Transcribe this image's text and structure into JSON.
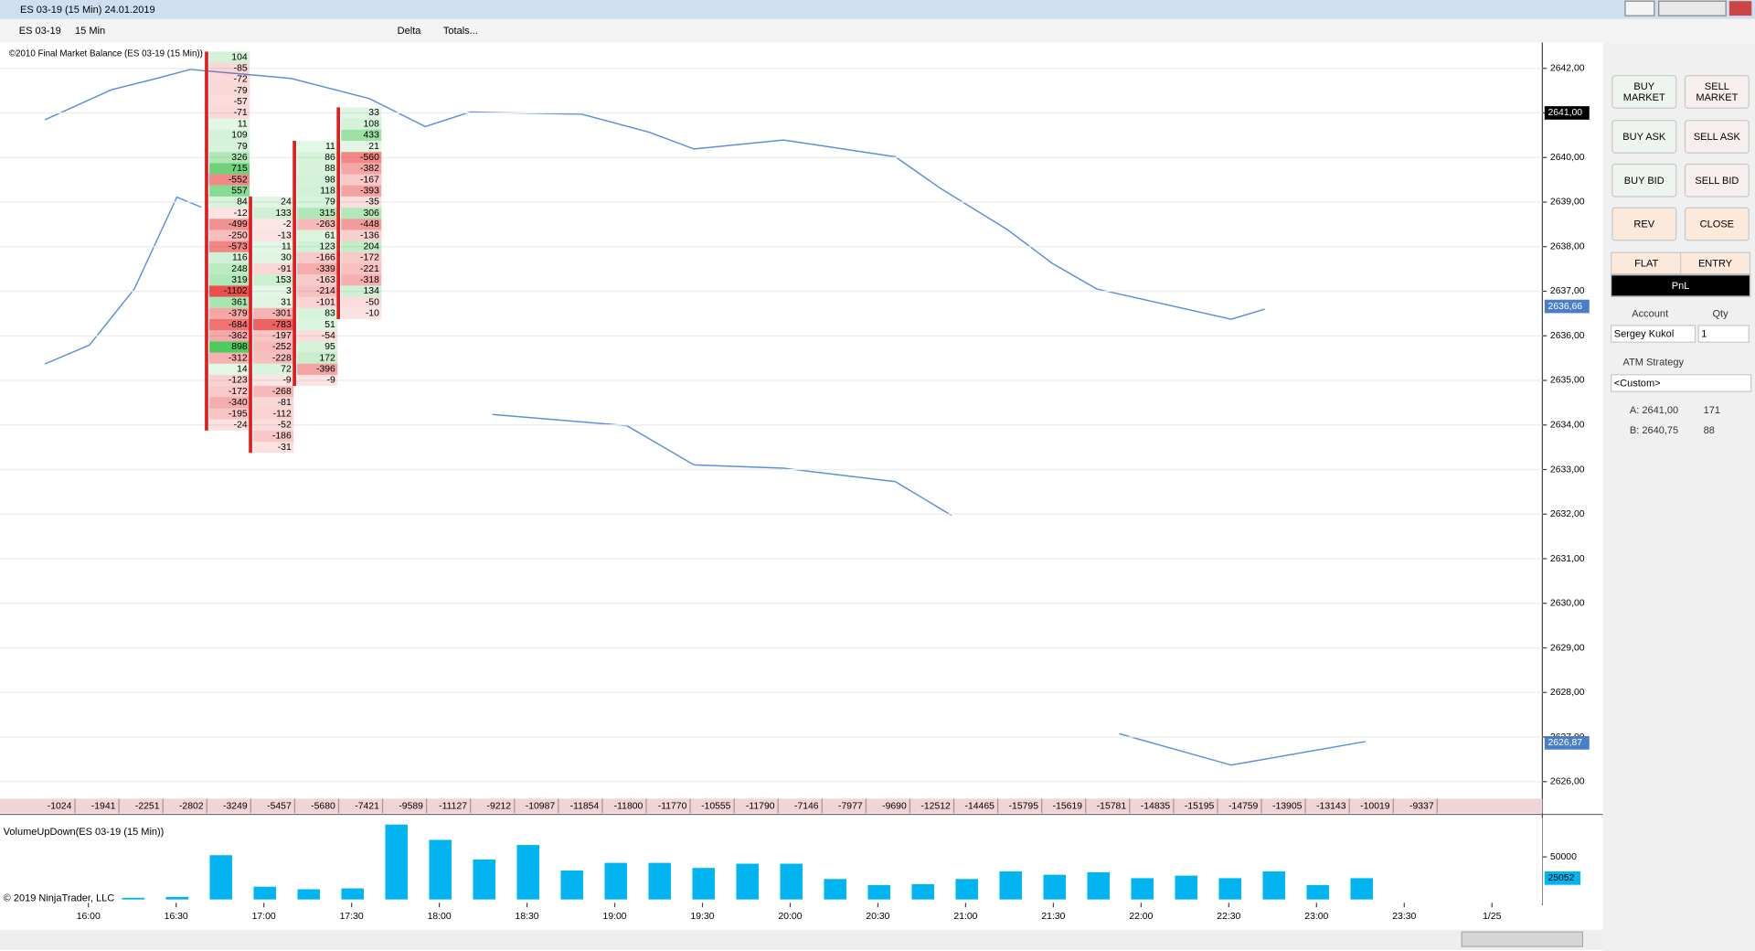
{
  "window": {
    "title": "ES 03-19 (15 Min)  24.01.2019"
  },
  "toolbar": {
    "instrument": "ES 03-19",
    "interval": "15 Min",
    "style": "Delta",
    "totals": "Totals..."
  },
  "chart_data": [
    {
      "type": "footprint",
      "label": "©2010 Final Market Balance  (ES 03-19 (15 Min))",
      "ylim": [
        2625.75,
        2642.5
      ],
      "yticks": [
        {
          "value": 2642,
          "label": "2642,00"
        },
        {
          "value": 2641,
          "label": "2641,00"
        },
        {
          "value": 2640,
          "label": "2640,00"
        },
        {
          "value": 2639,
          "label": "2639,00"
        },
        {
          "value": 2638,
          "label": "2638,00"
        },
        {
          "value": 2637,
          "label": "2637,00"
        },
        {
          "value": 2636,
          "label": "2636,00"
        },
        {
          "value": 2635,
          "label": "2635,00"
        },
        {
          "value": 2634,
          "label": "2634,00"
        },
        {
          "value": 2633,
          "label": "2633,00"
        },
        {
          "value": 2632,
          "label": "2632,00"
        },
        {
          "value": 2631,
          "label": "2631,00"
        },
        {
          "value": 2630,
          "label": "2630,00"
        },
        {
          "value": 2629,
          "label": "2629,00"
        },
        {
          "value": 2628,
          "label": "2628,00"
        },
        {
          "value": 2627,
          "label": "2627,00"
        },
        {
          "value": 2626,
          "label": "2626,00"
        }
      ],
      "price_markers": [
        {
          "value": 2641,
          "label": "2641,00",
          "color": "#000000"
        },
        {
          "value": 2636.66,
          "label": "2636,66",
          "color": "#4a7fc8"
        },
        {
          "value": 2626.87,
          "label": "2626,87",
          "color": "#4a7fc8"
        }
      ],
      "columns": [
        null,
        null,
        null,
        null,
        {
          "top": 2642.25,
          "values": [
            104,
            -85,
            -72,
            -79,
            -57,
            -71,
            11,
            109,
            79,
            326,
            715,
            -552,
            557,
            84,
            -12,
            -499,
            -250,
            -573,
            116,
            248,
            319,
            -1102,
            361,
            -379,
            -684,
            -362,
            898,
            -312,
            14,
            -123,
            -172,
            -340,
            -195,
            -24
          ]
        },
        {
          "top": 2639,
          "values": [
            24,
            133,
            -2,
            -13,
            11,
            30,
            -91,
            153,
            3,
            31,
            -301,
            -783,
            -197,
            -252,
            -228,
            72,
            -9,
            -268,
            -81,
            -112,
            -52,
            -186,
            -31
          ]
        },
        {
          "top": 2640.25,
          "values": [
            11,
            86,
            88,
            98,
            118,
            79,
            315,
            -263,
            61,
            123,
            -166,
            -339,
            -163,
            -214,
            -101,
            83,
            51,
            -54,
            95,
            172,
            -396,
            -9
          ]
        },
        {
          "top": 2641,
          "values": [
            33,
            108,
            433,
            21,
            -560,
            -382,
            -167,
            -393,
            -35,
            306,
            -448,
            -136,
            204,
            -172,
            -221,
            -318,
            134,
            -50,
            -10
          ]
        },
        null,
        null,
        null,
        null,
        null,
        null,
        null,
        null,
        null,
        null,
        null,
        null,
        null,
        null,
        null,
        null,
        null,
        null,
        null,
        null,
        null,
        null,
        null,
        null
      ],
      "delta_totals": [
        -1024,
        -1941,
        -2251,
        -2802,
        -3249,
        -5457,
        -5680,
        -7421,
        -9589,
        -11127,
        -9212,
        -10987,
        -11854,
        -11800,
        -11770,
        -10555,
        -11790,
        -7146,
        -7977,
        -9690,
        -12512,
        -14465,
        -15795,
        -15619,
        -15781,
        -14835,
        -15195,
        -14759,
        -13905,
        -13143,
        -10019,
        -9337
      ],
      "xticks": [
        "16:00",
        "16:30",
        "17:00",
        "17:30",
        "18:00",
        "18:30",
        "19:00",
        "19:30",
        "20:00",
        "20:30",
        "21:00",
        "21:30",
        "22:00",
        "22:30",
        "23:00",
        "23:30",
        "1/25"
      ]
    },
    {
      "type": "bar",
      "title": "VolumeUpDown(ES 03-19 (15 Min))",
      "color": "#00b4f0",
      "values": [
        2000,
        3000,
        52000,
        15000,
        12000,
        13000,
        88000,
        70000,
        47000,
        64000,
        34000,
        43000,
        43000,
        37000,
        42000,
        42000,
        24000,
        17000,
        18000,
        24000,
        33000,
        29000,
        32000,
        25000,
        28000,
        25000,
        33000,
        17000,
        25000
      ],
      "ylim": [
        0,
        93400
      ],
      "yticks": [
        50000
      ],
      "marker": 25052,
      "copyright": "© 2019 NinjaTrader, LLC"
    }
  ],
  "order_panel": {
    "buy_market": "BUY MARKET",
    "sell_market": "SELL MARKET",
    "buy_ask": "BUY ASK",
    "sell_ask": "SELL ASK",
    "buy_bid": "BUY BID",
    "sell_bid": "SELL BID",
    "rev": "REV",
    "close": "CLOSE",
    "flat": "FLAT",
    "entry": "ENTRY",
    "pnl": "PnL",
    "account_label": "Account",
    "qty_label": "Qty",
    "account": "Sergey Kukol",
    "qty": "1",
    "atm_label": "ATM Strategy",
    "atm": "<Custom>",
    "ask": "A: 2641,00",
    "ask_size": "171",
    "bid": "B: 2640,75",
    "bid_size": "88"
  }
}
